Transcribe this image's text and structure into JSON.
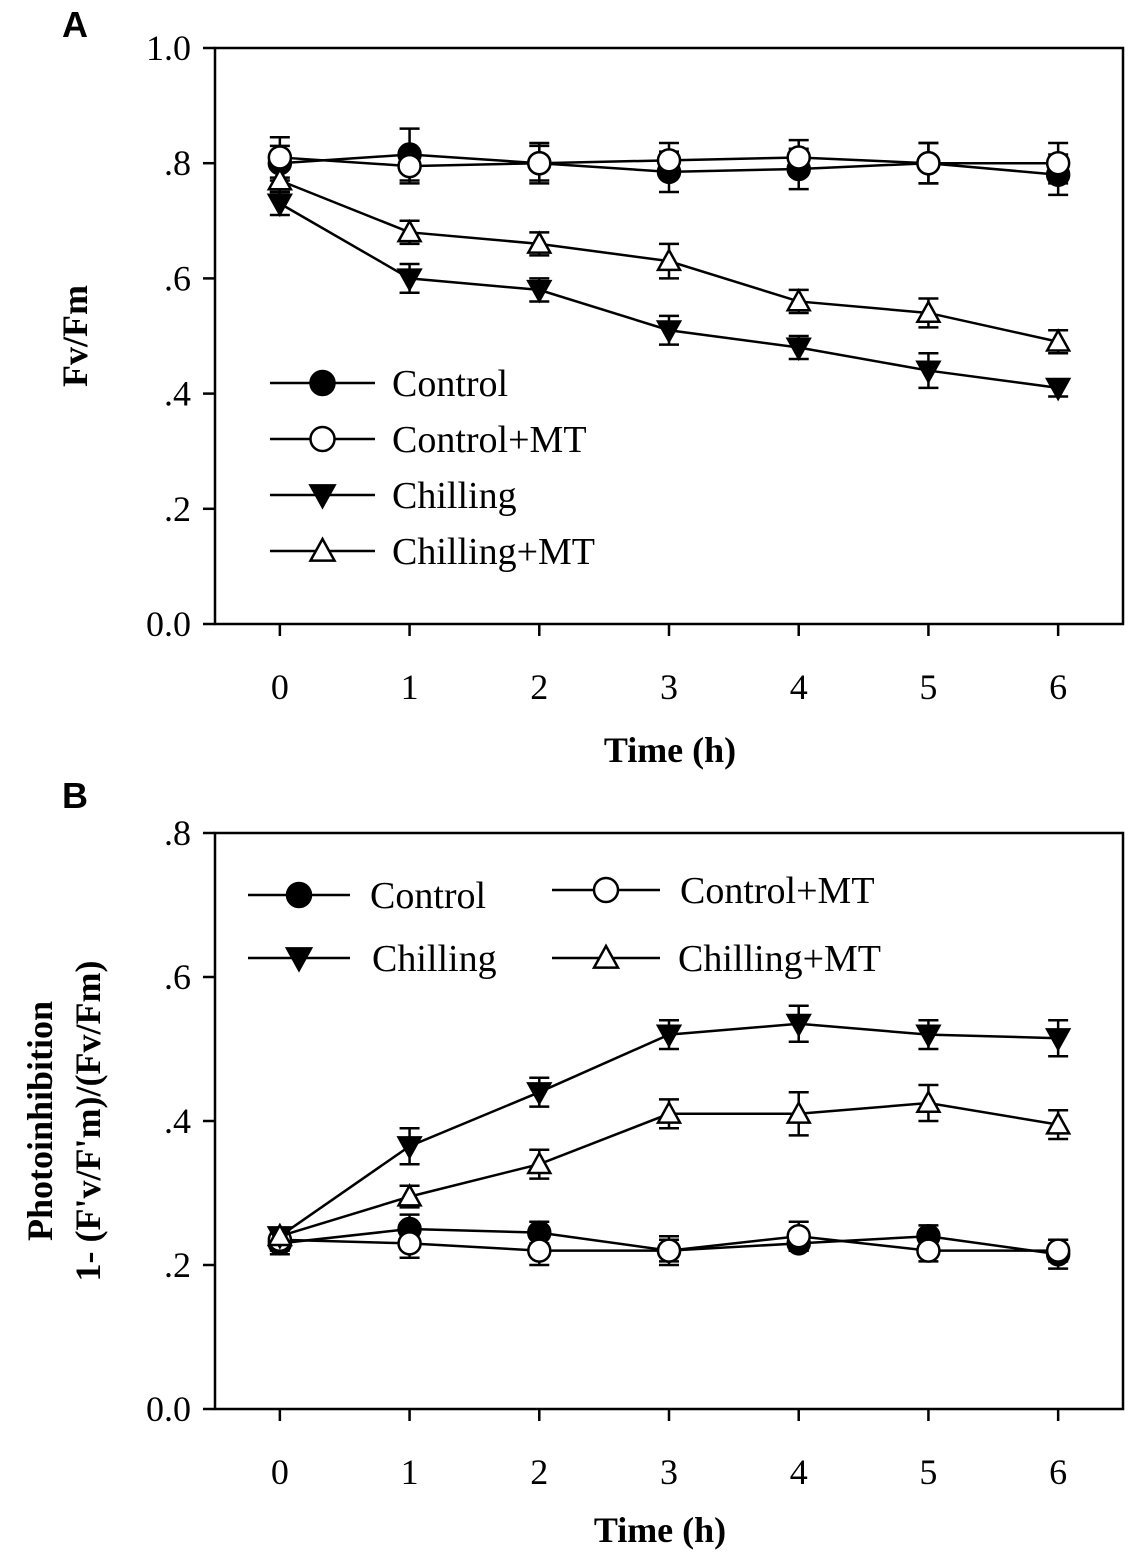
{
  "chart_data": [
    {
      "type": "line",
      "panel": "A",
      "xlabel": "Time (h)",
      "ylabel": "Fv/Fm",
      "x": [
        0,
        1,
        2,
        3,
        4,
        5,
        6
      ],
      "x_tick_labels": [
        "0",
        "1",
        "2",
        "3",
        "4",
        "5",
        "6"
      ],
      "xlim": [
        -0.5,
        6.5
      ],
      "ylim": [
        0,
        1.0
      ],
      "y_ticks": [
        0,
        0.2,
        0.4,
        0.6,
        0.8,
        1.0
      ],
      "y_tick_labels": [
        "0.0",
        ".2",
        ".4",
        ".6",
        ".8",
        "1.0"
      ],
      "legend_placement": "lower-left",
      "series": [
        {
          "name": "Control",
          "marker": "circle-filled",
          "values": [
            0.8,
            0.815,
            0.8,
            0.785,
            0.79,
            0.8,
            0.78
          ],
          "errors": [
            0.03,
            0.045,
            0.035,
            0.035,
            0.035,
            0.035,
            0.035
          ]
        },
        {
          "name": "Control+MT",
          "marker": "circle-open",
          "values": [
            0.81,
            0.795,
            0.8,
            0.805,
            0.81,
            0.8,
            0.8
          ],
          "errors": [
            0.035,
            0.03,
            0.03,
            0.03,
            0.03,
            0.035,
            0.035
          ]
        },
        {
          "name": "Chilling",
          "marker": "triangle-down-filled",
          "values": [
            0.73,
            0.6,
            0.58,
            0.51,
            0.48,
            0.44,
            0.41
          ],
          "errors": [
            0.02,
            0.025,
            0.02,
            0.025,
            0.02,
            0.03,
            0.015
          ]
        },
        {
          "name": "Chilling+MT",
          "marker": "triangle-up-open",
          "values": [
            0.77,
            0.68,
            0.66,
            0.63,
            0.56,
            0.54,
            0.49
          ],
          "errors": [
            0.02,
            0.02,
            0.02,
            0.03,
            0.02,
            0.025,
            0.02
          ]
        }
      ]
    },
    {
      "type": "line",
      "panel": "B",
      "xlabel": "Time (h)",
      "ylabel_lines": [
        "Photoinhibition",
        "1- (F'v/F'm)/(Fv/Fm)"
      ],
      "x": [
        0,
        1,
        2,
        3,
        4,
        5,
        6
      ],
      "x_tick_labels": [
        "0",
        "1",
        "2",
        "3",
        "4",
        "5",
        "6"
      ],
      "xlim": [
        -0.5,
        6.5
      ],
      "ylim": [
        0,
        0.8
      ],
      "y_ticks": [
        0,
        0.2,
        0.4,
        0.6,
        0.8
      ],
      "y_tick_labels": [
        "0.0",
        ".2",
        ".4",
        ".6",
        ".8"
      ],
      "legend_placement": "top-left, two columns",
      "series": [
        {
          "name": "Control",
          "marker": "circle-filled",
          "values": [
            0.23,
            0.25,
            0.245,
            0.22,
            0.23,
            0.24,
            0.215
          ],
          "errors": [
            0.015,
            0.02,
            0.015,
            0.015,
            0.01,
            0.015,
            0.02
          ]
        },
        {
          "name": "Control+MT",
          "marker": "circle-open",
          "values": [
            0.235,
            0.23,
            0.22,
            0.22,
            0.24,
            0.22,
            0.22
          ],
          "errors": [
            0.015,
            0.02,
            0.02,
            0.02,
            0.02,
            0.015,
            0.015
          ]
        },
        {
          "name": "Chilling",
          "marker": "triangle-down-filled",
          "values": [
            0.24,
            0.365,
            0.44,
            0.52,
            0.535,
            0.52,
            0.515
          ],
          "errors": [
            0.01,
            0.025,
            0.02,
            0.02,
            0.025,
            0.02,
            0.025
          ]
        },
        {
          "name": "Chilling+MT",
          "marker": "triangle-up-open",
          "values": [
            0.24,
            0.295,
            0.34,
            0.41,
            0.41,
            0.425,
            0.395
          ],
          "errors": [
            0.01,
            0.015,
            0.02,
            0.02,
            0.03,
            0.025,
            0.02
          ]
        }
      ]
    }
  ]
}
